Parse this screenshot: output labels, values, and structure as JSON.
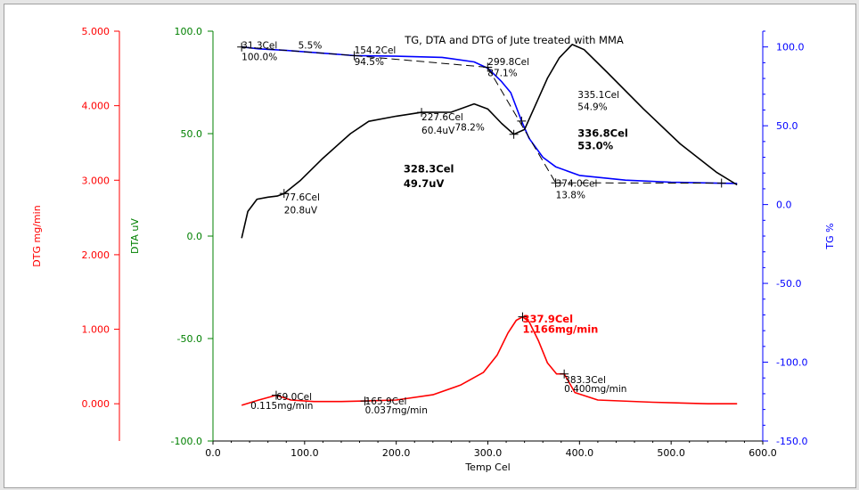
{
  "chart_data": {
    "type": "line",
    "title": "TG, DTA and DTG of Jute treated with MMA",
    "xlabel": "Temp Cel",
    "x_ticks": [
      "0.0",
      "100.0",
      "200.0",
      "300.0",
      "400.0",
      "500.0",
      "600.0"
    ],
    "xlim": [
      0,
      600
    ],
    "axes": {
      "dtg": {
        "label": "DTG mg/min",
        "color": "#ff0000",
        "range": [
          -0.5,
          5.0
        ],
        "ticks": [
          "5.000",
          "4.000",
          "3.000",
          "2.000",
          "1.000",
          "0.000"
        ]
      },
      "dta": {
        "label": "DTA uV",
        "color": "#008000",
        "range": [
          -100,
          100
        ],
        "ticks": [
          "100.0",
          "50.0",
          "0.0",
          "-50.0",
          "-100.0"
        ]
      },
      "tg": {
        "label": "TG %",
        "color": "#0000ff",
        "range": [
          -150,
          110
        ],
        "ticks": [
          "100.0",
          "50.0",
          "0.0",
          "-50.0",
          "-100.0",
          "-150.0"
        ]
      }
    },
    "series": [
      {
        "color": "#0000ff",
        "axis": "tg",
        "points": [
          [
            31.3,
            100.0
          ],
          [
            50,
            98.8
          ],
          [
            80,
            97.8
          ],
          [
            110,
            96.5
          ],
          [
            154.2,
            94.5
          ],
          [
            200,
            94.1
          ],
          [
            250,
            93.4
          ],
          [
            285,
            90.5
          ],
          [
            300,
            86.5
          ],
          [
            315,
            78
          ],
          [
            325,
            71
          ],
          [
            336.8,
            53.0
          ],
          [
            345,
            42
          ],
          [
            360,
            30
          ],
          [
            374,
            24
          ],
          [
            400,
            18.5
          ],
          [
            450,
            15.5
          ],
          [
            500,
            14.2
          ],
          [
            550,
            13.6
          ],
          [
            572,
            13.4
          ]
        ]
      },
      {
        "color": "#000000",
        "axis": "dta",
        "points": [
          [
            31.3,
            -1
          ],
          [
            38,
            12
          ],
          [
            48,
            18
          ],
          [
            60,
            19
          ],
          [
            70,
            19.5
          ],
          [
            77.6,
            20.8
          ],
          [
            95,
            27
          ],
          [
            120,
            38
          ],
          [
            150,
            50
          ],
          [
            170,
            56
          ],
          [
            200,
            58.5
          ],
          [
            227.6,
            60.4
          ],
          [
            260,
            60.5
          ],
          [
            285,
            64.5
          ],
          [
            300,
            62
          ],
          [
            315,
            55
          ],
          [
            328.3,
            49.7
          ],
          [
            340,
            52
          ],
          [
            350,
            62
          ],
          [
            365,
            77
          ],
          [
            378,
            87
          ],
          [
            392,
            93.5
          ],
          [
            405,
            91
          ],
          [
            430,
            80
          ],
          [
            470,
            62
          ],
          [
            510,
            45
          ],
          [
            550,
            31
          ],
          [
            572,
            25
          ]
        ]
      },
      {
        "color": "#ff0000",
        "axis": "dtg",
        "points": [
          [
            31.3,
            -0.02
          ],
          [
            50,
            0.05
          ],
          [
            69,
            0.115
          ],
          [
            85,
            0.05
          ],
          [
            110,
            0.03
          ],
          [
            140,
            0.03
          ],
          [
            165.9,
            0.037
          ],
          [
            200,
            0.05
          ],
          [
            240,
            0.12
          ],
          [
            270,
            0.25
          ],
          [
            295,
            0.42
          ],
          [
            310,
            0.65
          ],
          [
            322,
            0.95
          ],
          [
            331,
            1.12
          ],
          [
            337.9,
            1.166
          ],
          [
            345,
            1.1
          ],
          [
            355,
            0.85
          ],
          [
            365,
            0.55
          ],
          [
            375,
            0.4
          ],
          [
            383.3,
            0.4
          ],
          [
            395,
            0.15
          ],
          [
            420,
            0.05
          ],
          [
            480,
            0.02
          ],
          [
            540,
            0.0
          ],
          [
            572,
            0.0
          ]
        ]
      }
    ],
    "dashed_steps": {
      "color": "#000000",
      "axis": "tg",
      "points": [
        [
          31.3,
          100.0
        ],
        [
          154.2,
          94.5
        ],
        [
          154.2,
          94.5
        ],
        [
          299.8,
          87.1
        ],
        [
          299.8,
          87.1
        ],
        [
          374.0,
          13.8
        ],
        [
          374.0,
          13.8
        ],
        [
          555,
          13.6
        ]
      ]
    },
    "markers": [
      {
        "axis": "tg",
        "x": 31.3,
        "y": 100.0
      },
      {
        "axis": "tg",
        "x": 154.2,
        "y": 94.5
      },
      {
        "axis": "tg",
        "x": 299.8,
        "y": 87.1
      },
      {
        "axis": "tg",
        "x": 336.8,
        "y": 53.0
      },
      {
        "axis": "tg",
        "x": 374.0,
        "y": 13.8
      },
      {
        "axis": "tg",
        "x": 555,
        "y": 13.6
      },
      {
        "axis": "dta",
        "x": 77.6,
        "y": 20.8
      },
      {
        "axis": "dta",
        "x": 227.6,
        "y": 60.4
      },
      {
        "axis": "dta",
        "x": 328.3,
        "y": 49.7
      },
      {
        "axis": "dtg",
        "x": 69.0,
        "y": 0.115
      },
      {
        "axis": "dtg",
        "x": 165.9,
        "y": 0.037
      },
      {
        "axis": "dtg",
        "x": 337.9,
        "y": 1.166
      },
      {
        "axis": "dtg",
        "x": 383.3,
        "y": 0.4
      }
    ],
    "annotations": [
      {
        "text": "31.3Cel",
        "color": "#000000",
        "bold": false,
        "x": 31.3,
        "y": 99.0,
        "axis": "tg"
      },
      {
        "text": "100.0%",
        "color": "#000000",
        "bold": false,
        "x": 31.3,
        "y": 91.5,
        "axis": "tg"
      },
      {
        "text": "5.5%",
        "color": "#000000",
        "bold": false,
        "x": 93.0,
        "y": 99.0,
        "axis": "tg"
      },
      {
        "text": "154.2Cel",
        "color": "#000000",
        "bold": false,
        "x": 154.2,
        "y": 96.0,
        "axis": "tg"
      },
      {
        "text": "94.5%",
        "color": "#000000",
        "bold": false,
        "x": 154.2,
        "y": 88.5,
        "axis": "tg"
      },
      {
        "text": "299.8Cel",
        "color": "#000000",
        "bold": false,
        "x": 299.8,
        "y": 88.5,
        "axis": "tg"
      },
      {
        "text": "87.1%",
        "color": "#000000",
        "bold": false,
        "x": 299.8,
        "y": 81.5,
        "axis": "tg"
      },
      {
        "text": "335.1Cel",
        "color": "#000000",
        "bold": false,
        "x": 398.0,
        "y": 67.5,
        "axis": "tg"
      },
      {
        "text": "54.9%",
        "color": "#000000",
        "bold": false,
        "x": 398.0,
        "y": 60.0,
        "axis": "tg"
      },
      {
        "text": "336.8Cel",
        "color": "#000000",
        "bold": true,
        "x": 398.0,
        "y": 43.0,
        "axis": "tg"
      },
      {
        "text": "53.0%",
        "color": "#000000",
        "bold": true,
        "x": 398.0,
        "y": 35.0,
        "axis": "tg"
      },
      {
        "text": "374.0Cel",
        "color": "#000000",
        "bold": false,
        "x": 374.0,
        "y": 11.5,
        "axis": "tg"
      },
      {
        "text": "13.8%",
        "color": "#000000",
        "bold": false,
        "x": 374.0,
        "y": 4.0,
        "axis": "tg"
      },
      {
        "text": "77.6Cel",
        "color": "#000000",
        "bold": false,
        "x": 77.6,
        "y": 17.5,
        "axis": "dta"
      },
      {
        "text": "20.8uV",
        "color": "#000000",
        "bold": false,
        "x": 77.6,
        "y": 11.0,
        "axis": "dta"
      },
      {
        "text": "227.6Cel",
        "color": "#000000",
        "bold": false,
        "x": 227.6,
        "y": 56.5,
        "axis": "dta"
      },
      {
        "text": "60.4uV",
        "color": "#000000",
        "bold": false,
        "x": 227.6,
        "y": 50.0,
        "axis": "dta"
      },
      {
        "text": "78.2%",
        "color": "#000000",
        "bold": false,
        "x": 264.0,
        "y": 51.5,
        "axis": "dta"
      },
      {
        "text": "328.3Cel",
        "color": "#000000",
        "bold": true,
        "x": 208.0,
        "y": 31.0,
        "axis": "dta"
      },
      {
        "text": "49.7uV",
        "color": "#000000",
        "bold": true,
        "x": 208.0,
        "y": 24.0,
        "axis": "dta"
      },
      {
        "text": "69.0Cel",
        "color": "#000000",
        "bold": false,
        "x": 69.0,
        "y": 0.05,
        "axis": "dtg"
      },
      {
        "text": "0.115mg/min",
        "color": "#000000",
        "bold": false,
        "x": 41.0,
        "y": -0.07,
        "axis": "dtg"
      },
      {
        "text": "165.9Cel",
        "color": "#000000",
        "bold": false,
        "x": 165.9,
        "y": -0.01,
        "axis": "dtg"
      },
      {
        "text": "0.037mg/min",
        "color": "#000000",
        "bold": false,
        "x": 165.9,
        "y": -0.13,
        "axis": "dtg"
      },
      {
        "text": "337.9Cel",
        "color": "#ff0000",
        "bold": true,
        "x": 337.9,
        "y": 1.09,
        "axis": "dtg"
      },
      {
        "text": "1.166mg/min",
        "color": "#ff0000",
        "bold": true,
        "x": 337.9,
        "y": 0.95,
        "axis": "dtg"
      },
      {
        "text": "383.3Cel",
        "color": "#000000",
        "bold": false,
        "x": 383.3,
        "y": 0.28,
        "axis": "dtg"
      },
      {
        "text": "0.400mg/min",
        "color": "#000000",
        "bold": false,
        "x": 383.3,
        "y": 0.16,
        "axis": "dtg"
      }
    ]
  }
}
